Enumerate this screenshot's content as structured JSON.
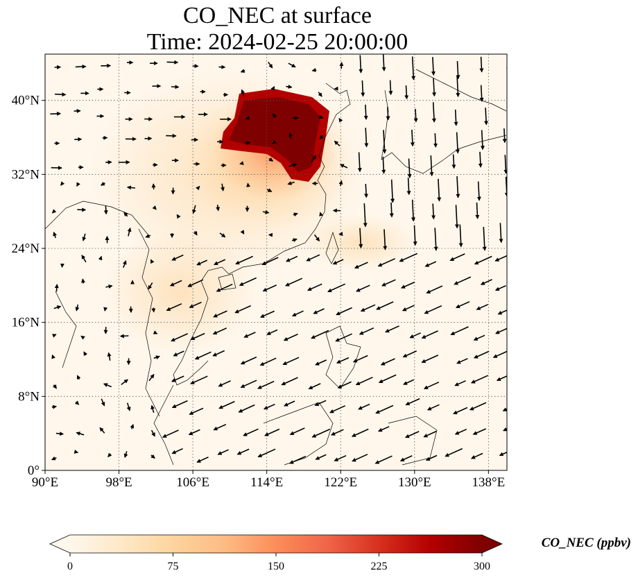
{
  "title": {
    "line1": "CO_NEC at surface",
    "line2": "Time: 2024-02-25 20:00:00"
  },
  "map": {
    "lon_range": [
      90,
      140
    ],
    "lat_range": [
      0,
      45
    ],
    "gridlines": true,
    "x_ticks": [
      {
        "value": 90,
        "label": "90°E"
      },
      {
        "value": 98,
        "label": "98°E"
      },
      {
        "value": 106,
        "label": "106°E"
      },
      {
        "value": 114,
        "label": "114°E"
      },
      {
        "value": 122,
        "label": "122°E"
      },
      {
        "value": 130,
        "label": "130°E"
      },
      {
        "value": 138,
        "label": "138°E"
      }
    ],
    "y_ticks": [
      {
        "value": 0,
        "label": "0°"
      },
      {
        "value": 8,
        "label": "8°N"
      },
      {
        "value": 16,
        "label": "16°N"
      },
      {
        "value": 24,
        "label": "24°N"
      },
      {
        "value": 32,
        "label": "32°N"
      },
      {
        "value": 40,
        "label": "40°N"
      }
    ]
  },
  "colorbar": {
    "label": "CO_NEC (ppbv)",
    "min": 0,
    "max": 300,
    "extend": "both",
    "colormap": "OrRd",
    "colors": [
      "#fff7ec",
      "#fee8c8",
      "#fdd49e",
      "#fdbb84",
      "#fc8d59",
      "#ef6548",
      "#d7301f",
      "#b30000",
      "#7f0000"
    ],
    "ticks": [
      {
        "value": 0,
        "label": "0"
      },
      {
        "value": 75,
        "label": "75"
      },
      {
        "value": 150,
        "label": "150"
      },
      {
        "value": 225,
        "label": "225"
      },
      {
        "value": 300,
        "label": "300"
      }
    ]
  }
}
